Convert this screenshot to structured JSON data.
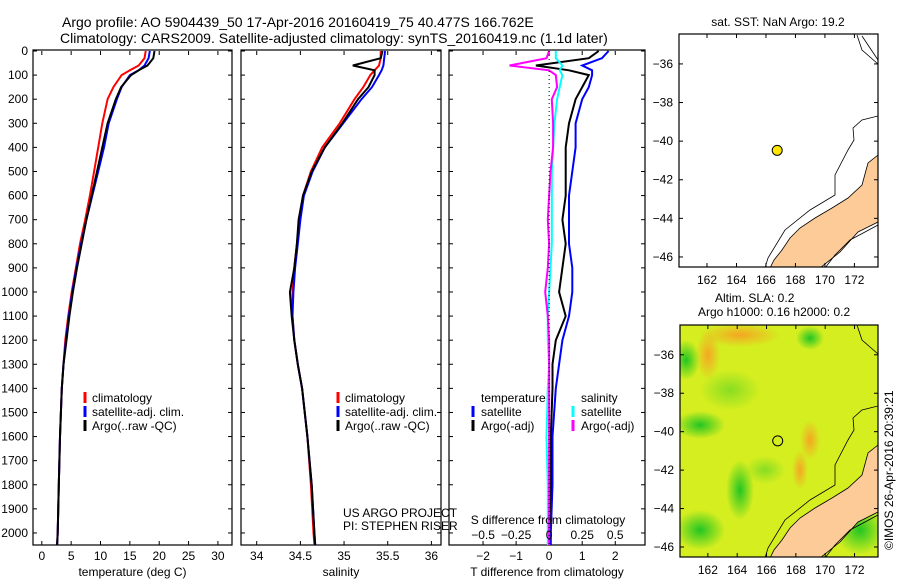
{
  "title": {
    "line1": "Argo profile: AO 5904439_50 17-Apr-2016 20160419_75 40.477S 166.762E",
    "line2": "Climatology: CARS2009. Satellite-adjusted climatology: synTS_20160419.nc (1.1d later)"
  },
  "colors": {
    "climatology": "#ff0000",
    "satellite": "#0000ff",
    "argo": "#000000",
    "sal_satellite": "#00ffff",
    "sal_argo": "#ff00ff",
    "land": "#fccb98",
    "float": "#ffe600"
  },
  "chart_data": [
    {
      "type": "line",
      "title": "",
      "xlabel": "temperature (deg C)",
      "ylabel": "",
      "xlim": [
        -1.5,
        32.4
      ],
      "ylim": [
        2050,
        0
      ],
      "xticks": [
        0,
        5,
        10,
        15,
        20,
        25,
        30
      ],
      "yticks": [
        0,
        100,
        200,
        300,
        400,
        500,
        600,
        700,
        800,
        900,
        1000,
        1100,
        1200,
        1300,
        1400,
        1500,
        1600,
        1700,
        1800,
        1900,
        2000
      ],
      "legend": {
        "placement": "bottom-center",
        "entries": [
          "climatology",
          "satellite-adj. clim.",
          "Argo(..raw -QC)"
        ]
      },
      "depth": [
        0,
        30,
        60,
        80,
        100,
        150,
        200,
        300,
        400,
        500,
        600,
        700,
        800,
        900,
        1000,
        1100,
        1200,
        1300,
        1400,
        1600,
        1800,
        2000,
        2050
      ],
      "series": [
        {
          "name": "climatology",
          "color_key": "climatology",
          "values": [
            17.7,
            17.5,
            16.5,
            15.0,
            13.6,
            12.2,
            11.2,
            10.3,
            9.6,
            8.9,
            8.2,
            7.4,
            6.5,
            5.8,
            5.1,
            4.5,
            4.0,
            3.7,
            3.4,
            3.1,
            2.9,
            2.7,
            2.6
          ]
        },
        {
          "name": "satellite-adj. clim.",
          "color_key": "satellite",
          "values": [
            18.4,
            18.2,
            17.5,
            16.5,
            15.0,
            13.6,
            12.8,
            11.4,
            10.6,
            9.6,
            8.6,
            7.6,
            6.7,
            5.9,
            5.2,
            4.6,
            4.1,
            3.7,
            3.4,
            3.1,
            2.9,
            2.7,
            2.6
          ]
        },
        {
          "name": "Argo(..raw -QC)",
          "color_key": "argo",
          "values": [
            19.2,
            19.0,
            18.0,
            16.5,
            15.2,
            13.5,
            12.6,
            11.2,
            10.3,
            9.4,
            8.5,
            7.6,
            6.8,
            6.0,
            5.3,
            4.7,
            4.2,
            3.7,
            3.4,
            3.1,
            2.9,
            2.7,
            2.6
          ]
        }
      ],
      "annotation": ""
    },
    {
      "type": "line",
      "xlabel": "salinity",
      "xlim": [
        33.82,
        36.11
      ],
      "ylim": [
        2050,
        0
      ],
      "xticks": [
        34,
        34.5,
        35,
        35.5,
        36
      ],
      "legend": {
        "placement": "bottom-center",
        "entries": [
          "climatology",
          "satellite-adj. clim.",
          "Argo(..raw -QC)"
        ]
      },
      "annotation": [
        "US ARGO PROJECT",
        "PI: STEPHEN RISER"
      ],
      "depth": [
        0,
        30,
        60,
        80,
        100,
        150,
        200,
        300,
        400,
        500,
        600,
        700,
        800,
        900,
        1000,
        1100,
        1200,
        1300,
        1400,
        1600,
        1800,
        2000,
        2050
      ],
      "series": [
        {
          "name": "climatology",
          "color_key": "climatology",
          "values": [
            35.42,
            35.42,
            35.4,
            35.35,
            35.3,
            35.22,
            35.12,
            34.95,
            34.75,
            34.62,
            34.53,
            34.49,
            34.46,
            34.43,
            34.41,
            34.41,
            34.43,
            34.47,
            34.52,
            34.58,
            34.62,
            34.65,
            34.66
          ]
        },
        {
          "name": "satellite-adj. clim.",
          "color_key": "satellite",
          "values": [
            35.47,
            35.46,
            35.45,
            35.43,
            35.4,
            35.32,
            35.2,
            34.99,
            34.78,
            34.64,
            34.54,
            34.5,
            34.47,
            34.44,
            34.42,
            34.41,
            34.43,
            34.47,
            34.52,
            34.58,
            34.63,
            34.66,
            34.67
          ]
        },
        {
          "name": "Argo(..raw -QC)",
          "color_key": "argo",
          "values": [
            35.44,
            35.42,
            35.1,
            35.35,
            35.35,
            35.28,
            35.16,
            34.98,
            34.78,
            34.63,
            34.53,
            34.48,
            34.46,
            34.43,
            34.38,
            34.4,
            34.43,
            34.47,
            34.52,
            34.58,
            34.63,
            34.66,
            34.67
          ]
        }
      ]
    },
    {
      "type": "line",
      "xlabel": "T difference from climatology",
      "x2label": "S difference from climatology",
      "xlim": [
        -3.03,
        2.9
      ],
      "ylim": [
        2050,
        0
      ],
      "xticks": [
        -2,
        -1,
        0,
        1,
        2
      ],
      "x2ticks": [
        -0.5,
        -0.25,
        0,
        0.25,
        0.5
      ],
      "x2_per_x": 0.25,
      "legend": {
        "placement": "bottom-center",
        "groups": [
          {
            "title": "temperature",
            "entries": [
              "satellite",
              "Argo(-adj)"
            ]
          },
          {
            "title": "salinity",
            "entries": [
              "satellite",
              "Argo(-adj)"
            ]
          }
        ]
      },
      "depth": [
        0,
        30,
        60,
        80,
        100,
        150,
        200,
        300,
        400,
        500,
        600,
        700,
        800,
        900,
        1000,
        1100,
        1200,
        1300,
        1400,
        1600,
        1800,
        2000,
        2050
      ],
      "series": [
        {
          "name": "temperature satellite",
          "color_key": "satellite",
          "axis": "T",
          "values": [
            1.8,
            1.6,
            1.0,
            1.3,
            1.3,
            1.2,
            1.0,
            0.8,
            0.8,
            0.7,
            0.6,
            0.6,
            0.6,
            0.7,
            0.7,
            0.6,
            0.4,
            0.3,
            0.2,
            0.1,
            0.1,
            0.05,
            0.05
          ]
        },
        {
          "name": "temperature Argo(-adj)",
          "color_key": "argo",
          "axis": "T",
          "values": [
            1.5,
            1.2,
            -0.4,
            0.6,
            1.2,
            1.0,
            0.8,
            0.6,
            0.5,
            0.5,
            0.5,
            0.4,
            0.5,
            0.4,
            0.3,
            0.5,
            0.2,
            0.1,
            0.1,
            0.05,
            0.05,
            0.0,
            0.0
          ]
        },
        {
          "name": "salinity satellite",
          "color_key": "sal_satellite",
          "axis": "S",
          "values": [
            0.05,
            0.05,
            0.1,
            0.08,
            0.1,
            0.08,
            0.06,
            0.04,
            0.03,
            0.02,
            0.02,
            0.02,
            0.02,
            0.01,
            0.0,
            -0.01,
            -0.01,
            0.0,
            -0.01,
            -0.02,
            -0.01,
            -0.01,
            -0.01
          ]
        },
        {
          "name": "salinity Argo(-adj)",
          "color_key": "sal_argo",
          "axis": "S",
          "values": [
            0.0,
            -0.02,
            -0.3,
            0.0,
            0.05,
            0.06,
            0.02,
            0.03,
            0.03,
            0.01,
            0.0,
            -0.01,
            0.0,
            -0.01,
            -0.03,
            -0.01,
            0.0,
            0.0,
            0.0,
            0.0,
            0.0,
            0.0,
            0.0
          ]
        }
      ]
    },
    {
      "type": "scatter",
      "title": "sat. SST: NaN Argo: 19.2",
      "xlim": [
        160.1,
        173.6
      ],
      "ylim": [
        -46.52,
        -34.45
      ],
      "xticks": [
        162,
        164,
        166,
        168,
        170,
        172
      ],
      "yticks": [
        -36,
        -38,
        -40,
        -42,
        -44,
        -46
      ],
      "points": [
        {
          "lon": 166.762,
          "lat": -40.477
        }
      ]
    },
    {
      "type": "heatmap",
      "title": "Altim. SLA: 0.2",
      "subtitle": "Argo h1000: 0.16 h2000: 0.2",
      "xlim": [
        160.1,
        173.6
      ],
      "ylim": [
        -46.52,
        -34.45
      ],
      "xticks": [
        162,
        164,
        166,
        168,
        170,
        172
      ],
      "yticks": [
        -36,
        -38,
        -40,
        -42,
        -44,
        -46
      ],
      "points": [
        {
          "lon": 166.762,
          "lat": -40.477
        }
      ],
      "annotation": "©IMOS 26-Apr-2016 20:39:21"
    }
  ]
}
